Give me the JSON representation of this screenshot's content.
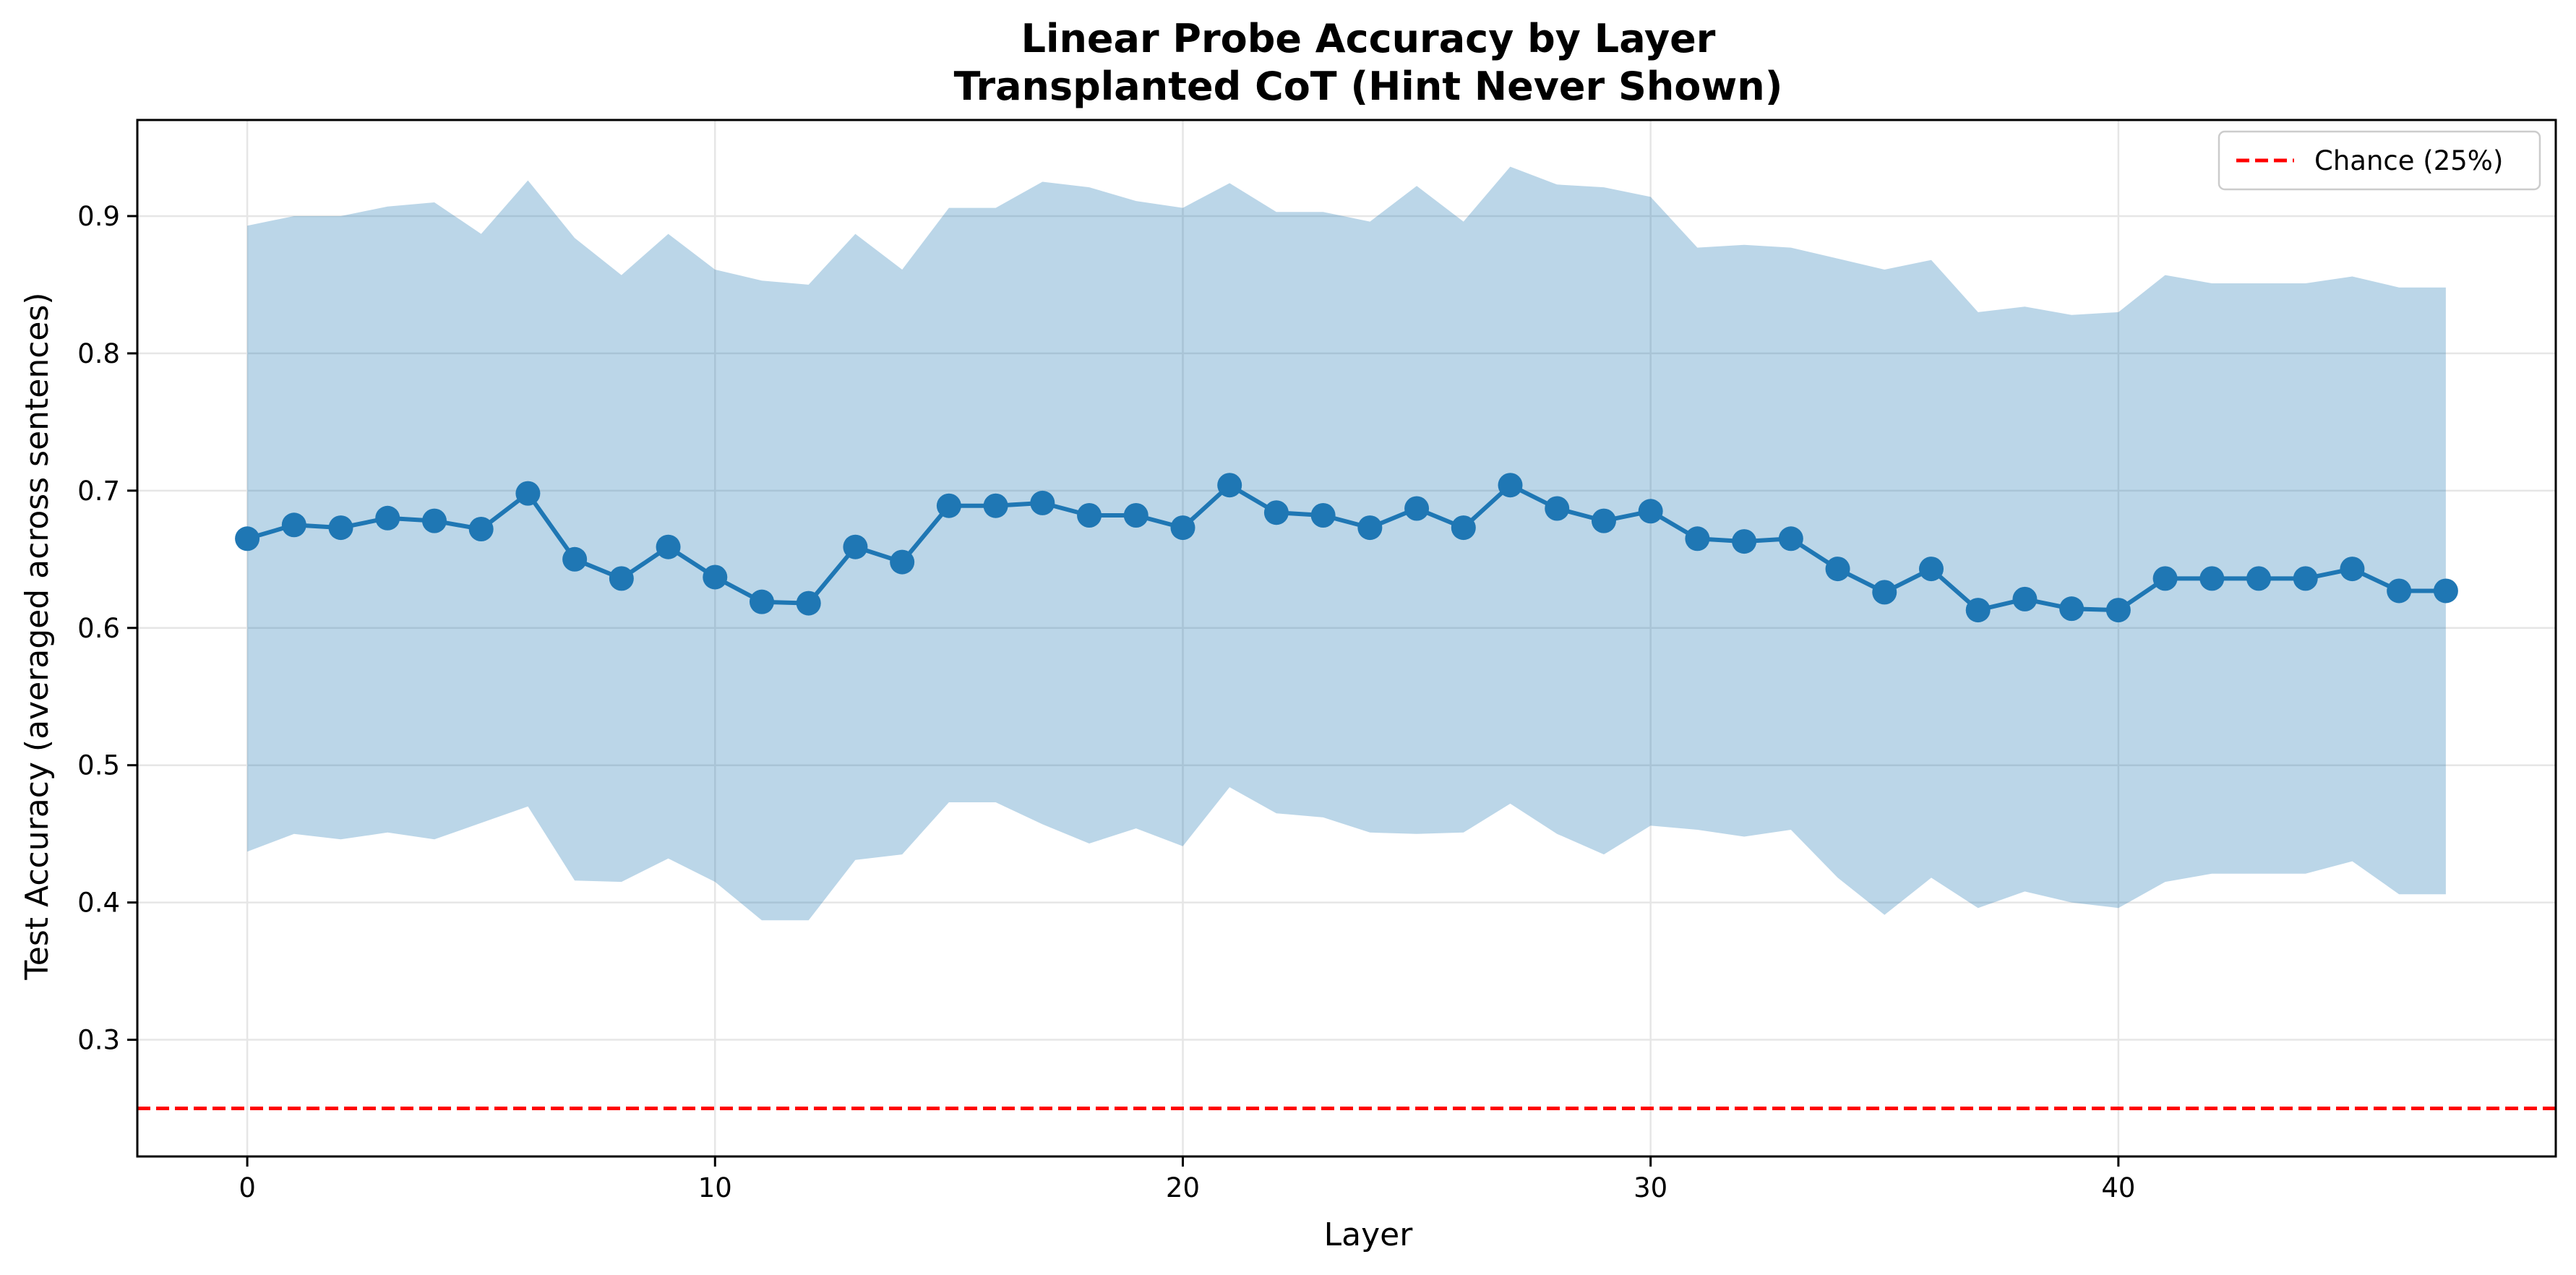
{
  "colors": {
    "line": "#1f77b4",
    "band": "#1f77b4",
    "chance": "#ff0000",
    "grid": "#e6e6e6",
    "frame": "#000000"
  },
  "chart_data": {
    "type": "line",
    "title_line1": "Linear Probe Accuracy by Layer",
    "title_line2": "Transplanted CoT (Hint Never Shown)",
    "xlabel": "Layer",
    "ylabel": "Test Accuracy (averaged across sentences)",
    "xlim": [
      -2.35,
      49.35
    ],
    "ylim": [
      0.215,
      0.97
    ],
    "grid": true,
    "legend_position": "upper right",
    "x_ticks": [
      0,
      10,
      20,
      30,
      40
    ],
    "y_ticks": [
      0.3,
      0.4,
      0.5,
      0.6,
      0.7,
      0.8,
      0.9
    ],
    "x_tick_labels": [
      "0",
      "10",
      "20",
      "30",
      "40"
    ],
    "y_tick_labels": [
      "0.3",
      "0.4",
      "0.5",
      "0.6",
      "0.7",
      "0.8",
      "0.9"
    ],
    "x": [
      0,
      1,
      2,
      3,
      4,
      5,
      6,
      7,
      8,
      9,
      10,
      11,
      12,
      13,
      14,
      15,
      16,
      17,
      18,
      19,
      20,
      21,
      22,
      23,
      24,
      25,
      26,
      27,
      28,
      29,
      30,
      31,
      32,
      33,
      34,
      35,
      36,
      37,
      38,
      39,
      40,
      41,
      42,
      43,
      44,
      45,
      46,
      47
    ],
    "series": [
      {
        "values": [
          0.665,
          0.675,
          0.673,
          0.68,
          0.678,
          0.672,
          0.698,
          0.65,
          0.636,
          0.659,
          0.637,
          0.619,
          0.618,
          0.659,
          0.648,
          0.689,
          0.689,
          0.691,
          0.682,
          0.682,
          0.673,
          0.704,
          0.684,
          0.682,
          0.673,
          0.687,
          0.673,
          0.704,
          0.687,
          0.678,
          0.685,
          0.665,
          0.663,
          0.665,
          0.643,
          0.626,
          0.643,
          0.613,
          0.621,
          0.614,
          0.613,
          0.636,
          0.636,
          0.636,
          0.636,
          0.643,
          0.627,
          0.627
        ],
        "upper": [
          0.893,
          0.9,
          0.9,
          0.907,
          0.91,
          0.887,
          0.926,
          0.884,
          0.857,
          0.887,
          0.861,
          0.853,
          0.85,
          0.887,
          0.861,
          0.906,
          0.906,
          0.925,
          0.921,
          0.911,
          0.906,
          0.924,
          0.903,
          0.903,
          0.896,
          0.922,
          0.896,
          0.936,
          0.923,
          0.921,
          0.914,
          0.877,
          0.879,
          0.877,
          0.869,
          0.861,
          0.868,
          0.83,
          0.834,
          0.828,
          0.83,
          0.857,
          0.851,
          0.851,
          0.851,
          0.856,
          0.848,
          0.848
        ],
        "lower": [
          0.437,
          0.45,
          0.446,
          0.451,
          0.446,
          0.458,
          0.47,
          0.416,
          0.415,
          0.432,
          0.415,
          0.387,
          0.387,
          0.431,
          0.435,
          0.473,
          0.473,
          0.457,
          0.443,
          0.454,
          0.441,
          0.484,
          0.465,
          0.462,
          0.451,
          0.45,
          0.451,
          0.472,
          0.45,
          0.435,
          0.456,
          0.453,
          0.448,
          0.453,
          0.418,
          0.391,
          0.418,
          0.396,
          0.408,
          0.4,
          0.396,
          0.415,
          0.421,
          0.421,
          0.421,
          0.43,
          0.406,
          0.406
        ]
      }
    ],
    "chance_level": 0.25,
    "legend_entries": [
      "Chance (25%)"
    ]
  }
}
